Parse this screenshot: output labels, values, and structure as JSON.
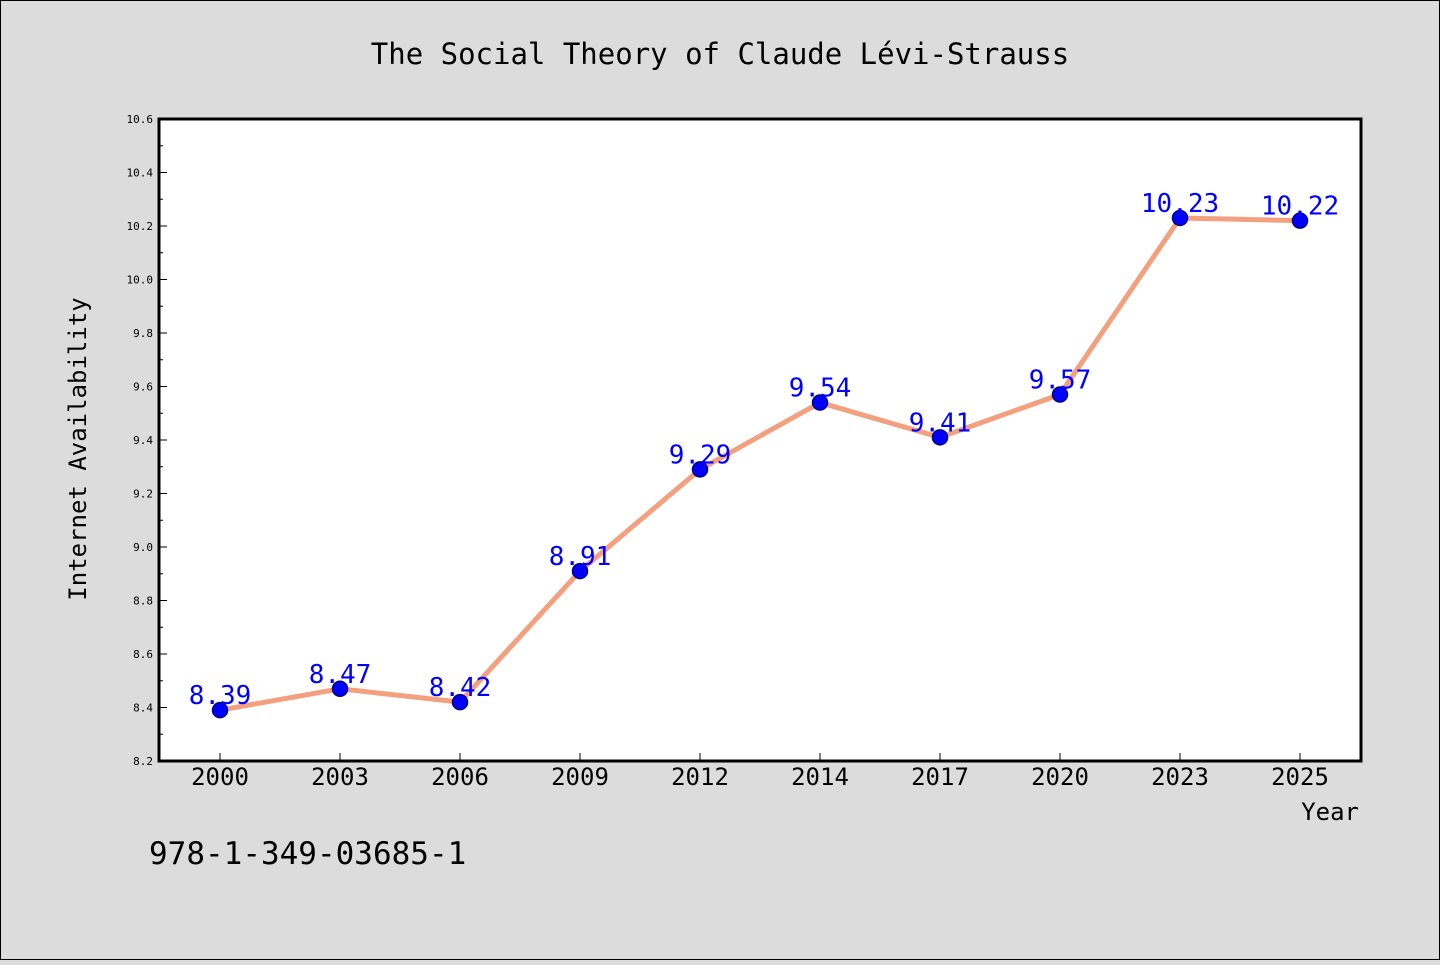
{
  "chart_data": {
    "type": "line",
    "title": "The Social Theory of Claude Lévi-Strauss",
    "xlabel": "Year",
    "ylabel": "Internet Availability",
    "categories": [
      "2000",
      "2003",
      "2006",
      "2009",
      "2012",
      "2014",
      "2017",
      "2020",
      "2023",
      "2025"
    ],
    "series": [
      {
        "values": [
          8.39,
          8.47,
          8.42,
          8.91,
          9.29,
          9.54,
          9.41,
          9.57,
          10.23,
          10.22
        ]
      }
    ],
    "data_labels": [
      "8.39",
      "8.47",
      "8.42",
      "8.91",
      "9.29",
      "9.54",
      "9.41",
      "9.57",
      "10.23",
      "10.22"
    ],
    "ylim": [
      8.2,
      10.6
    ],
    "yticks": [
      "8.2",
      "8.4",
      "8.6",
      "8.8",
      "9.0",
      "9.2",
      "9.4",
      "9.6",
      "9.8",
      "10.0",
      "10.2",
      "10.4",
      "10.6"
    ],
    "grid": false,
    "legend": "none",
    "annotation": "978-1-349-03685-1",
    "colors": {
      "line": "#f4a07e",
      "marker_fill": "#0000ff",
      "marker_stroke": "#00008b",
      "data_label": "#0000ff",
      "background": "#dcdcdc",
      "plot_area": "#ffffff",
      "axis": "#000000"
    }
  }
}
